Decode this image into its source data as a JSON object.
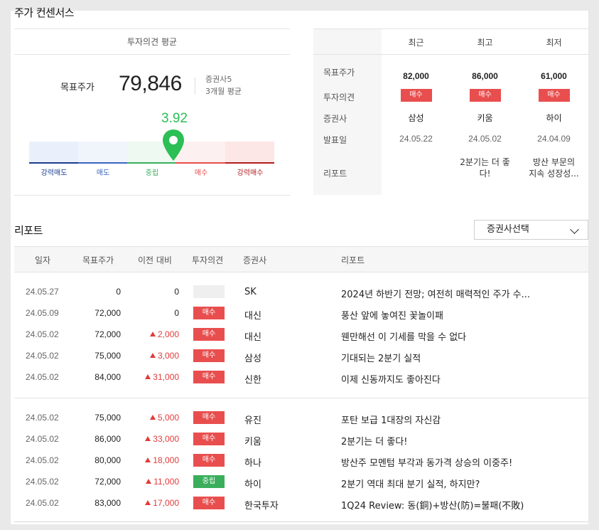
{
  "consensus": {
    "title": "주가 컨센서스",
    "avg_header": "투자의견 평균",
    "target_label": "목표주가",
    "target_value": "79,846",
    "brokers": "증권사5",
    "period": "3개월 평균",
    "score": "3.92",
    "score_value": 3.92,
    "scale": [
      "강력매도",
      "매도",
      "중립",
      "매수",
      "강력매수"
    ],
    "scale_colors": [
      "#1a3d8f",
      "#3a66c2",
      "#3aae5b",
      "#e94e4e",
      "#b01e1e"
    ],
    "pin_color": "#2bbf56"
  },
  "summary": {
    "columns": [
      "최근",
      "최고",
      "최저"
    ],
    "row_labels": [
      "목표주가",
      "투자의견",
      "증권사",
      "발표일",
      "리포트"
    ],
    "cols": [
      {
        "price": "82,000",
        "opinion": "매수",
        "broker": "삼성",
        "date": "24.05.22",
        "report_l1": "",
        "report_l2": ""
      },
      {
        "price": "86,000",
        "opinion": "매수",
        "broker": "키움",
        "date": "24.05.02",
        "report_l1": "2분기는 더 좋",
        "report_l2": "다!"
      },
      {
        "price": "61,000",
        "opinion": "매수",
        "broker": "하이",
        "date": "24.04.09",
        "report_l1": "방산 부문의",
        "report_l2": "지속 성장성..."
      }
    ]
  },
  "reports": {
    "title": "리포트",
    "select_label": "증권사선택",
    "headers": [
      "일자",
      "목표주가",
      "이전 대비",
      "투자의견",
      "증권사",
      "리포트"
    ],
    "rows": [
      {
        "date": "24.05.27",
        "tp": "0",
        "chg": "0",
        "up": false,
        "op": "",
        "op_type": "none",
        "broker": "SK",
        "title": "2024년 하반기 전망; 여전히 매력적인 주가 수..."
      },
      {
        "date": "24.05.09",
        "tp": "72,000",
        "chg": "0",
        "up": false,
        "op": "매수",
        "op_type": "buy",
        "broker": "대신",
        "title": "풍산 앞에 놓여진 꽃놀이패"
      },
      {
        "date": "24.05.02",
        "tp": "72,000",
        "chg": "2,000",
        "up": true,
        "op": "매수",
        "op_type": "buy",
        "broker": "대신",
        "title": "웬만해선 이 기세를 막을 수 없다"
      },
      {
        "date": "24.05.02",
        "tp": "75,000",
        "chg": "3,000",
        "up": true,
        "op": "매수",
        "op_type": "buy",
        "broker": "삼성",
        "title": "기대되는 2분기 실적"
      },
      {
        "date": "24.05.02",
        "tp": "84,000",
        "chg": "31,000",
        "up": true,
        "op": "매수",
        "op_type": "buy",
        "broker": "신한",
        "title": "이제 신동까지도 좋아진다"
      },
      {
        "date": "24.05.02",
        "tp": "75,000",
        "chg": "5,000",
        "up": true,
        "op": "매수",
        "op_type": "buy",
        "broker": "유진",
        "title": "포탄 보급 1대장의 자신감"
      },
      {
        "date": "24.05.02",
        "tp": "86,000",
        "chg": "33,000",
        "up": true,
        "op": "매수",
        "op_type": "buy",
        "broker": "키움",
        "title": "2분기는 더 좋다!"
      },
      {
        "date": "24.05.02",
        "tp": "80,000",
        "chg": "18,000",
        "up": true,
        "op": "매수",
        "op_type": "buy",
        "broker": "하나",
        "title": "방산주 모멘텀 부각과 동가격 상승의 이중주!"
      },
      {
        "date": "24.05.02",
        "tp": "72,000",
        "chg": "11,000",
        "up": true,
        "op": "중립",
        "op_type": "hold",
        "broker": "하이",
        "title": "2분기 역대 최대 분기 실적, 하지만?"
      },
      {
        "date": "24.05.02",
        "tp": "83,000",
        "chg": "17,000",
        "up": true,
        "op": "매수",
        "op_type": "buy",
        "broker": "한국투자",
        "title": "1Q24 Review: 동(銅)+방산(防)=불패(不敗)"
      }
    ]
  }
}
